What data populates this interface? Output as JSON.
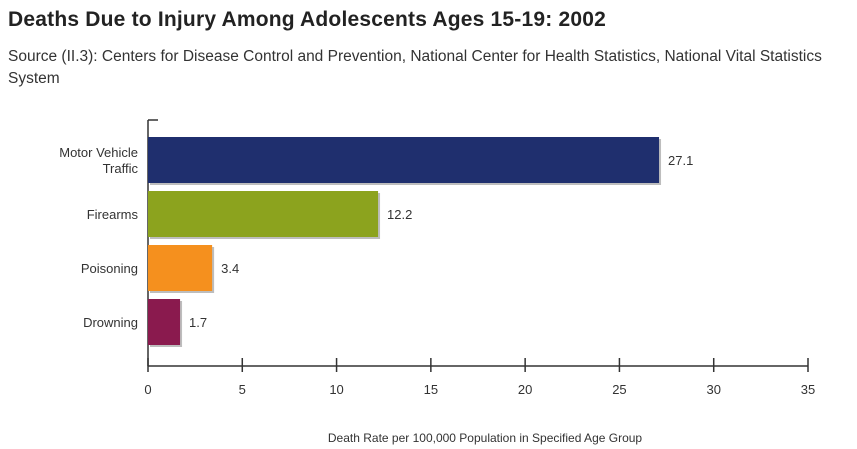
{
  "chart_data": {
    "type": "bar",
    "orientation": "horizontal",
    "title": "Deaths Due to Injury Among Adolescents Ages 15-19: 2002",
    "subtitle": "Source (II.3): Centers for Disease Control and Prevention, National Center for Health Statistics, National Vital Statistics System",
    "categories": [
      "Motor Vehicle Traffic",
      "Firearms",
      "Poisoning",
      "Drowning"
    ],
    "category_lines": [
      [
        "Motor Vehicle",
        "Traffic"
      ],
      [
        "Firearms"
      ],
      [
        "Poisoning"
      ],
      [
        "Drowning"
      ]
    ],
    "values": [
      27.1,
      12.2,
      3.4,
      1.7
    ],
    "value_labels": [
      "27.1",
      "12.2",
      "3.4",
      "1.7"
    ],
    "bar_colors": [
      "#1f2f6e",
      "#8ca31e",
      "#f5901e",
      "#8a1a4e"
    ],
    "xlabel": "Death Rate per 100,000 Population in Specified Age Group",
    "ylabel": "",
    "xlim": [
      0,
      35
    ],
    "xticks": [
      0,
      5,
      10,
      15,
      20,
      25,
      30,
      35
    ],
    "grid": false,
    "legend": "none"
  }
}
